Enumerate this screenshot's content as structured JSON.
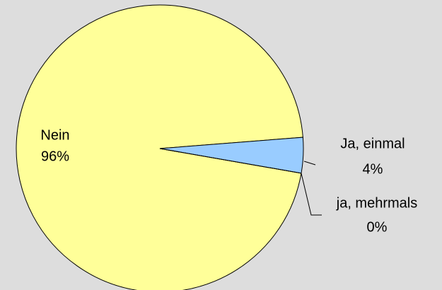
{
  "chart_data": {
    "type": "pie",
    "categories": [
      "Nein",
      "Ja, einmal",
      "ja, mehrmals"
    ],
    "values": [
      96,
      4,
      0
    ],
    "value_labels": [
      "96%",
      "4%",
      "0%"
    ],
    "colors": [
      "#ffff99",
      "#99ccff",
      "#3366ff"
    ]
  }
}
